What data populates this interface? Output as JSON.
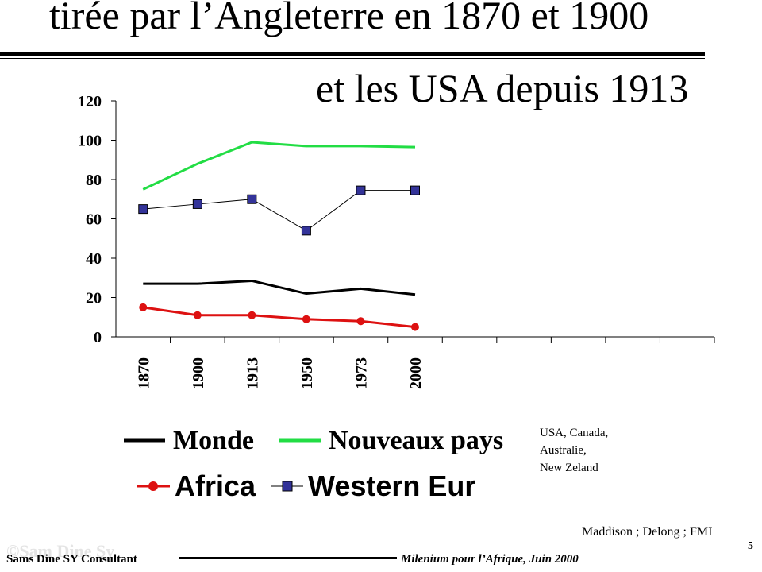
{
  "slide": {
    "title_line1": "tirée par l’Angleterre en 1870 et 1900",
    "title_line2": "et les USA depuis 1913",
    "note_lines": [
      "USA, Canada,",
      "Australie,",
      "New Zeland"
    ],
    "source": "Maddison ; Delong ; FMI",
    "page_number": "5",
    "footer_left": "Sams Dine SY Consultant",
    "footer_right": "Milenium pour l’Afrique, Juin 2000",
    "watermark": "©Sam Dine Sy"
  },
  "chart_data": {
    "type": "line",
    "categories": [
      "1870",
      "1900",
      "1913",
      "1950",
      "1973",
      "2000"
    ],
    "empty_category_slots": 5,
    "ylim": [
      0,
      120
    ],
    "yticks": [
      0,
      20,
      40,
      60,
      80,
      100,
      120
    ],
    "grid": false,
    "legend_position": "bottom",
    "series": [
      {
        "name": "Monde",
        "values": [
          27,
          27,
          28.5,
          22,
          24.5,
          21.5
        ],
        "color": "#000000",
        "marker": "none"
      },
      {
        "name": "Nouveaux  pays",
        "values": [
          75,
          88,
          99,
          97,
          97,
          96.5
        ],
        "color": "#22dd44",
        "marker": "none"
      },
      {
        "name": "Africa",
        "values": [
          15,
          11,
          11,
          9,
          8,
          5
        ],
        "color": "#dd1111",
        "marker": "circle"
      },
      {
        "name": "Western Eur",
        "values": [
          65,
          67.5,
          70,
          54,
          74.5,
          74.5
        ],
        "color": "#000000",
        "marker_color": "#333399",
        "marker": "square"
      }
    ]
  }
}
